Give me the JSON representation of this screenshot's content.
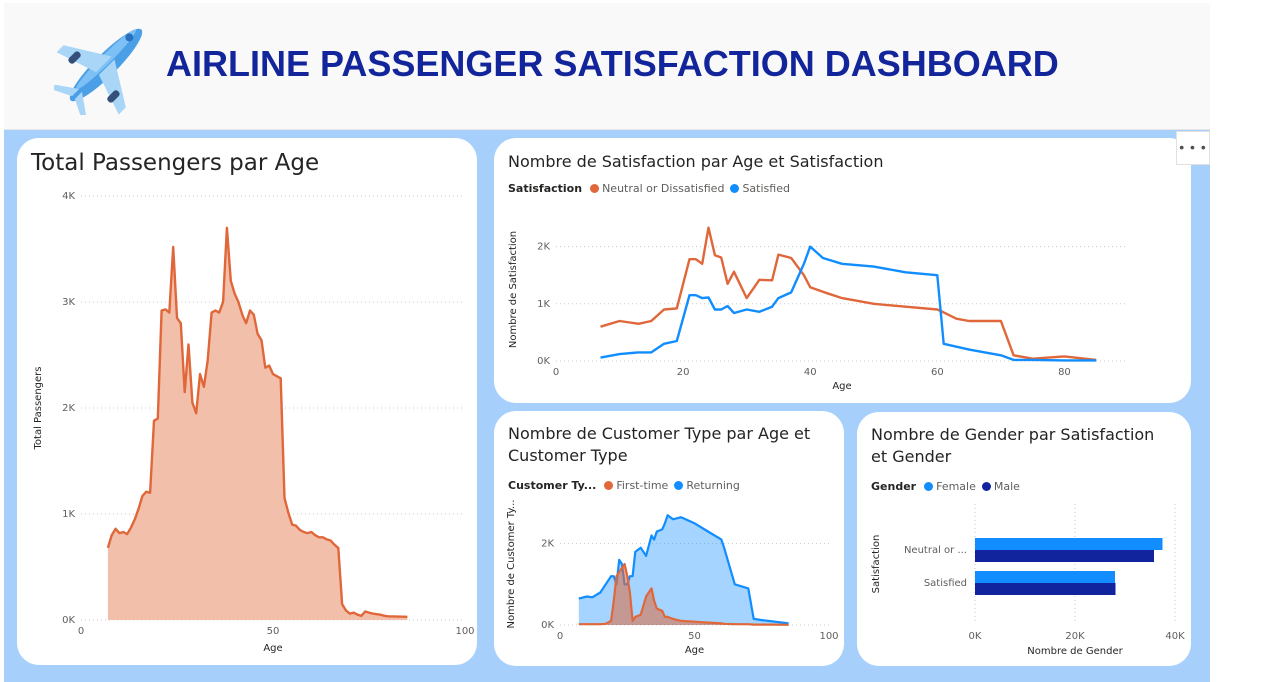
{
  "header": {
    "title": "AIRLINE PASSENGER SATISFACTION DASHBOARD",
    "logo_icon": "airplane-icon"
  },
  "more_options_icon": "more-options-icon",
  "more_options_label": "• • •",
  "colors": {
    "orange": "#e0673a",
    "blue": "#118dff",
    "navy": "#12239e",
    "bar_female": "#118dff",
    "bar_male": "#12239e"
  },
  "chart_data": [
    {
      "id": "passengers_by_age",
      "type": "area",
      "title": "Total Passengers par Age",
      "xlabel": "Age",
      "ylabel": "Total Passengers",
      "xlim": [
        0,
        100
      ],
      "ylim": [
        0,
        4000
      ],
      "xticks": [
        "0",
        "50",
        "100"
      ],
      "yticks": [
        "0K",
        "1K",
        "2K",
        "3K",
        "4K"
      ],
      "x": [
        7,
        8,
        9,
        10,
        11,
        12,
        13,
        14,
        15,
        16,
        17,
        18,
        19,
        20,
        21,
        22,
        23,
        24,
        25,
        26,
        27,
        28,
        29,
        30,
        31,
        32,
        33,
        34,
        35,
        36,
        37,
        38,
        39,
        40,
        41,
        42,
        43,
        44,
        45,
        46,
        47,
        48,
        49,
        50,
        51,
        52,
        53,
        54,
        55,
        56,
        57,
        58,
        59,
        60,
        61,
        62,
        63,
        64,
        65,
        66,
        67,
        68,
        69,
        70,
        71,
        72,
        73,
        74,
        75,
        76,
        77,
        78,
        79,
        80,
        85
      ],
      "values": [
        680,
        800,
        860,
        820,
        830,
        810,
        870,
        950,
        1050,
        1170,
        1210,
        1200,
        1880,
        1900,
        2920,
        2930,
        2900,
        3520,
        2850,
        2800,
        2150,
        2600,
        2050,
        1950,
        2320,
        2200,
        2450,
        2900,
        2920,
        2900,
        3000,
        3700,
        3200,
        3080,
        3000,
        2880,
        2800,
        2920,
        2880,
        2700,
        2640,
        2380,
        2400,
        2320,
        2300,
        2280,
        1150,
        1010,
        900,
        890,
        850,
        830,
        820,
        830,
        800,
        780,
        780,
        760,
        750,
        710,
        680,
        150,
        90,
        60,
        70,
        50,
        40,
        80,
        70,
        60,
        55,
        50,
        40,
        35,
        30
      ],
      "series": [
        {
          "name": "Total Passengers"
        }
      ]
    },
    {
      "id": "satisfaction_by_age",
      "type": "line",
      "title": "Nombre de Satisfaction par Age et Satisfaction",
      "xlabel": "Age",
      "ylabel": "Nombre de Satisfaction",
      "legend_title": "Satisfaction",
      "xlim": [
        0,
        90
      ],
      "ylim": [
        0,
        2500
      ],
      "xticks": [
        "0",
        "20",
        "40",
        "60",
        "80"
      ],
      "yticks": [
        "0K",
        "1K",
        "2K"
      ],
      "x": [
        7,
        10,
        13,
        15,
        17,
        19,
        21,
        22,
        23,
        24,
        25,
        26,
        27,
        28,
        30,
        32,
        34,
        35,
        37,
        39,
        40,
        42,
        45,
        50,
        55,
        60,
        61,
        63,
        65,
        70,
        72,
        75,
        80,
        85
      ],
      "series": [
        {
          "name": "Neutral or Dissatisfied",
          "color": "#e0673a",
          "values": [
            600,
            700,
            650,
            700,
            900,
            920,
            1780,
            1780,
            1700,
            2330,
            1850,
            1810,
            1350,
            1560,
            1100,
            1420,
            1410,
            1860,
            1800,
            1500,
            1290,
            1210,
            1100,
            1000,
            950,
            900,
            850,
            740,
            700,
            700,
            100,
            40,
            80,
            20
          ]
        },
        {
          "name": "Satisfied",
          "color": "#118dff",
          "values": [
            60,
            120,
            150,
            150,
            300,
            350,
            1150,
            1150,
            1100,
            1110,
            900,
            900,
            960,
            840,
            900,
            860,
            950,
            1100,
            1200,
            1700,
            2000,
            1800,
            1700,
            1650,
            1550,
            1500,
            300,
            250,
            200,
            100,
            20,
            20,
            10,
            10
          ]
        }
      ]
    },
    {
      "id": "customer_type_by_age",
      "type": "area",
      "title": "Nombre de Customer Type par Age et Customer Type",
      "title_lines": [
        "Nombre de Customer Type par Age et",
        "Customer Type"
      ],
      "xlabel": "Age",
      "ylabel": "Nombre de Customer Ty...",
      "legend_title": "Customer Ty...",
      "xlim": [
        0,
        100
      ],
      "ylim": [
        0,
        3000
      ],
      "xticks": [
        "0",
        "50",
        "100"
      ],
      "yticks": [
        "0K",
        "2K"
      ],
      "x": [
        7,
        10,
        12,
        15,
        17,
        19,
        20,
        21,
        22,
        23,
        24,
        25,
        26,
        27,
        28,
        30,
        32,
        34,
        35,
        36,
        38,
        39,
        40,
        42,
        45,
        50,
        55,
        60,
        61,
        65,
        70,
        72,
        75,
        80,
        85
      ],
      "series": [
        {
          "name": "First-time",
          "color": "#e0673a",
          "values": [
            20,
            20,
            20,
            20,
            30,
            100,
            600,
            1200,
            1300,
            1400,
            1500,
            1200,
            800,
            100,
            200,
            250,
            700,
            900,
            600,
            400,
            350,
            200,
            200,
            150,
            100,
            80,
            60,
            40,
            30,
            20,
            20,
            10,
            10,
            10,
            5
          ]
        },
        {
          "name": "Returning",
          "color": "#118dff",
          "values": [
            650,
            700,
            680,
            800,
            1000,
            1200,
            1200,
            1000,
            1600,
            1500,
            1000,
            1000,
            1200,
            1200,
            1800,
            1900,
            1700,
            2200,
            2100,
            2300,
            2350,
            2500,
            2700,
            2600,
            2650,
            2500,
            2300,
            2100,
            1900,
            1000,
            900,
            150,
            120,
            80,
            40
          ]
        }
      ]
    },
    {
      "id": "gender_by_satisfaction",
      "type": "bar",
      "orientation": "horizontal",
      "title": "Nombre de Gender par Satisfaction et Gender",
      "title_lines": [
        "Nombre de Gender par Satisfaction",
        "et Gender"
      ],
      "xlabel": "Nombre de Gender",
      "ylabel": "Satisfaction",
      "legend_title": "Gender",
      "xlim": [
        0,
        40000
      ],
      "xticks": [
        "0K",
        "20K",
        "40K"
      ],
      "categories": [
        "Neutral or ...",
        "Satisfied"
      ],
      "series": [
        {
          "name": "Female",
          "color": "#118dff",
          "values": [
            37500,
            28000
          ]
        },
        {
          "name": "Male",
          "color": "#12239e",
          "values": [
            35800,
            28100
          ]
        }
      ]
    }
  ]
}
